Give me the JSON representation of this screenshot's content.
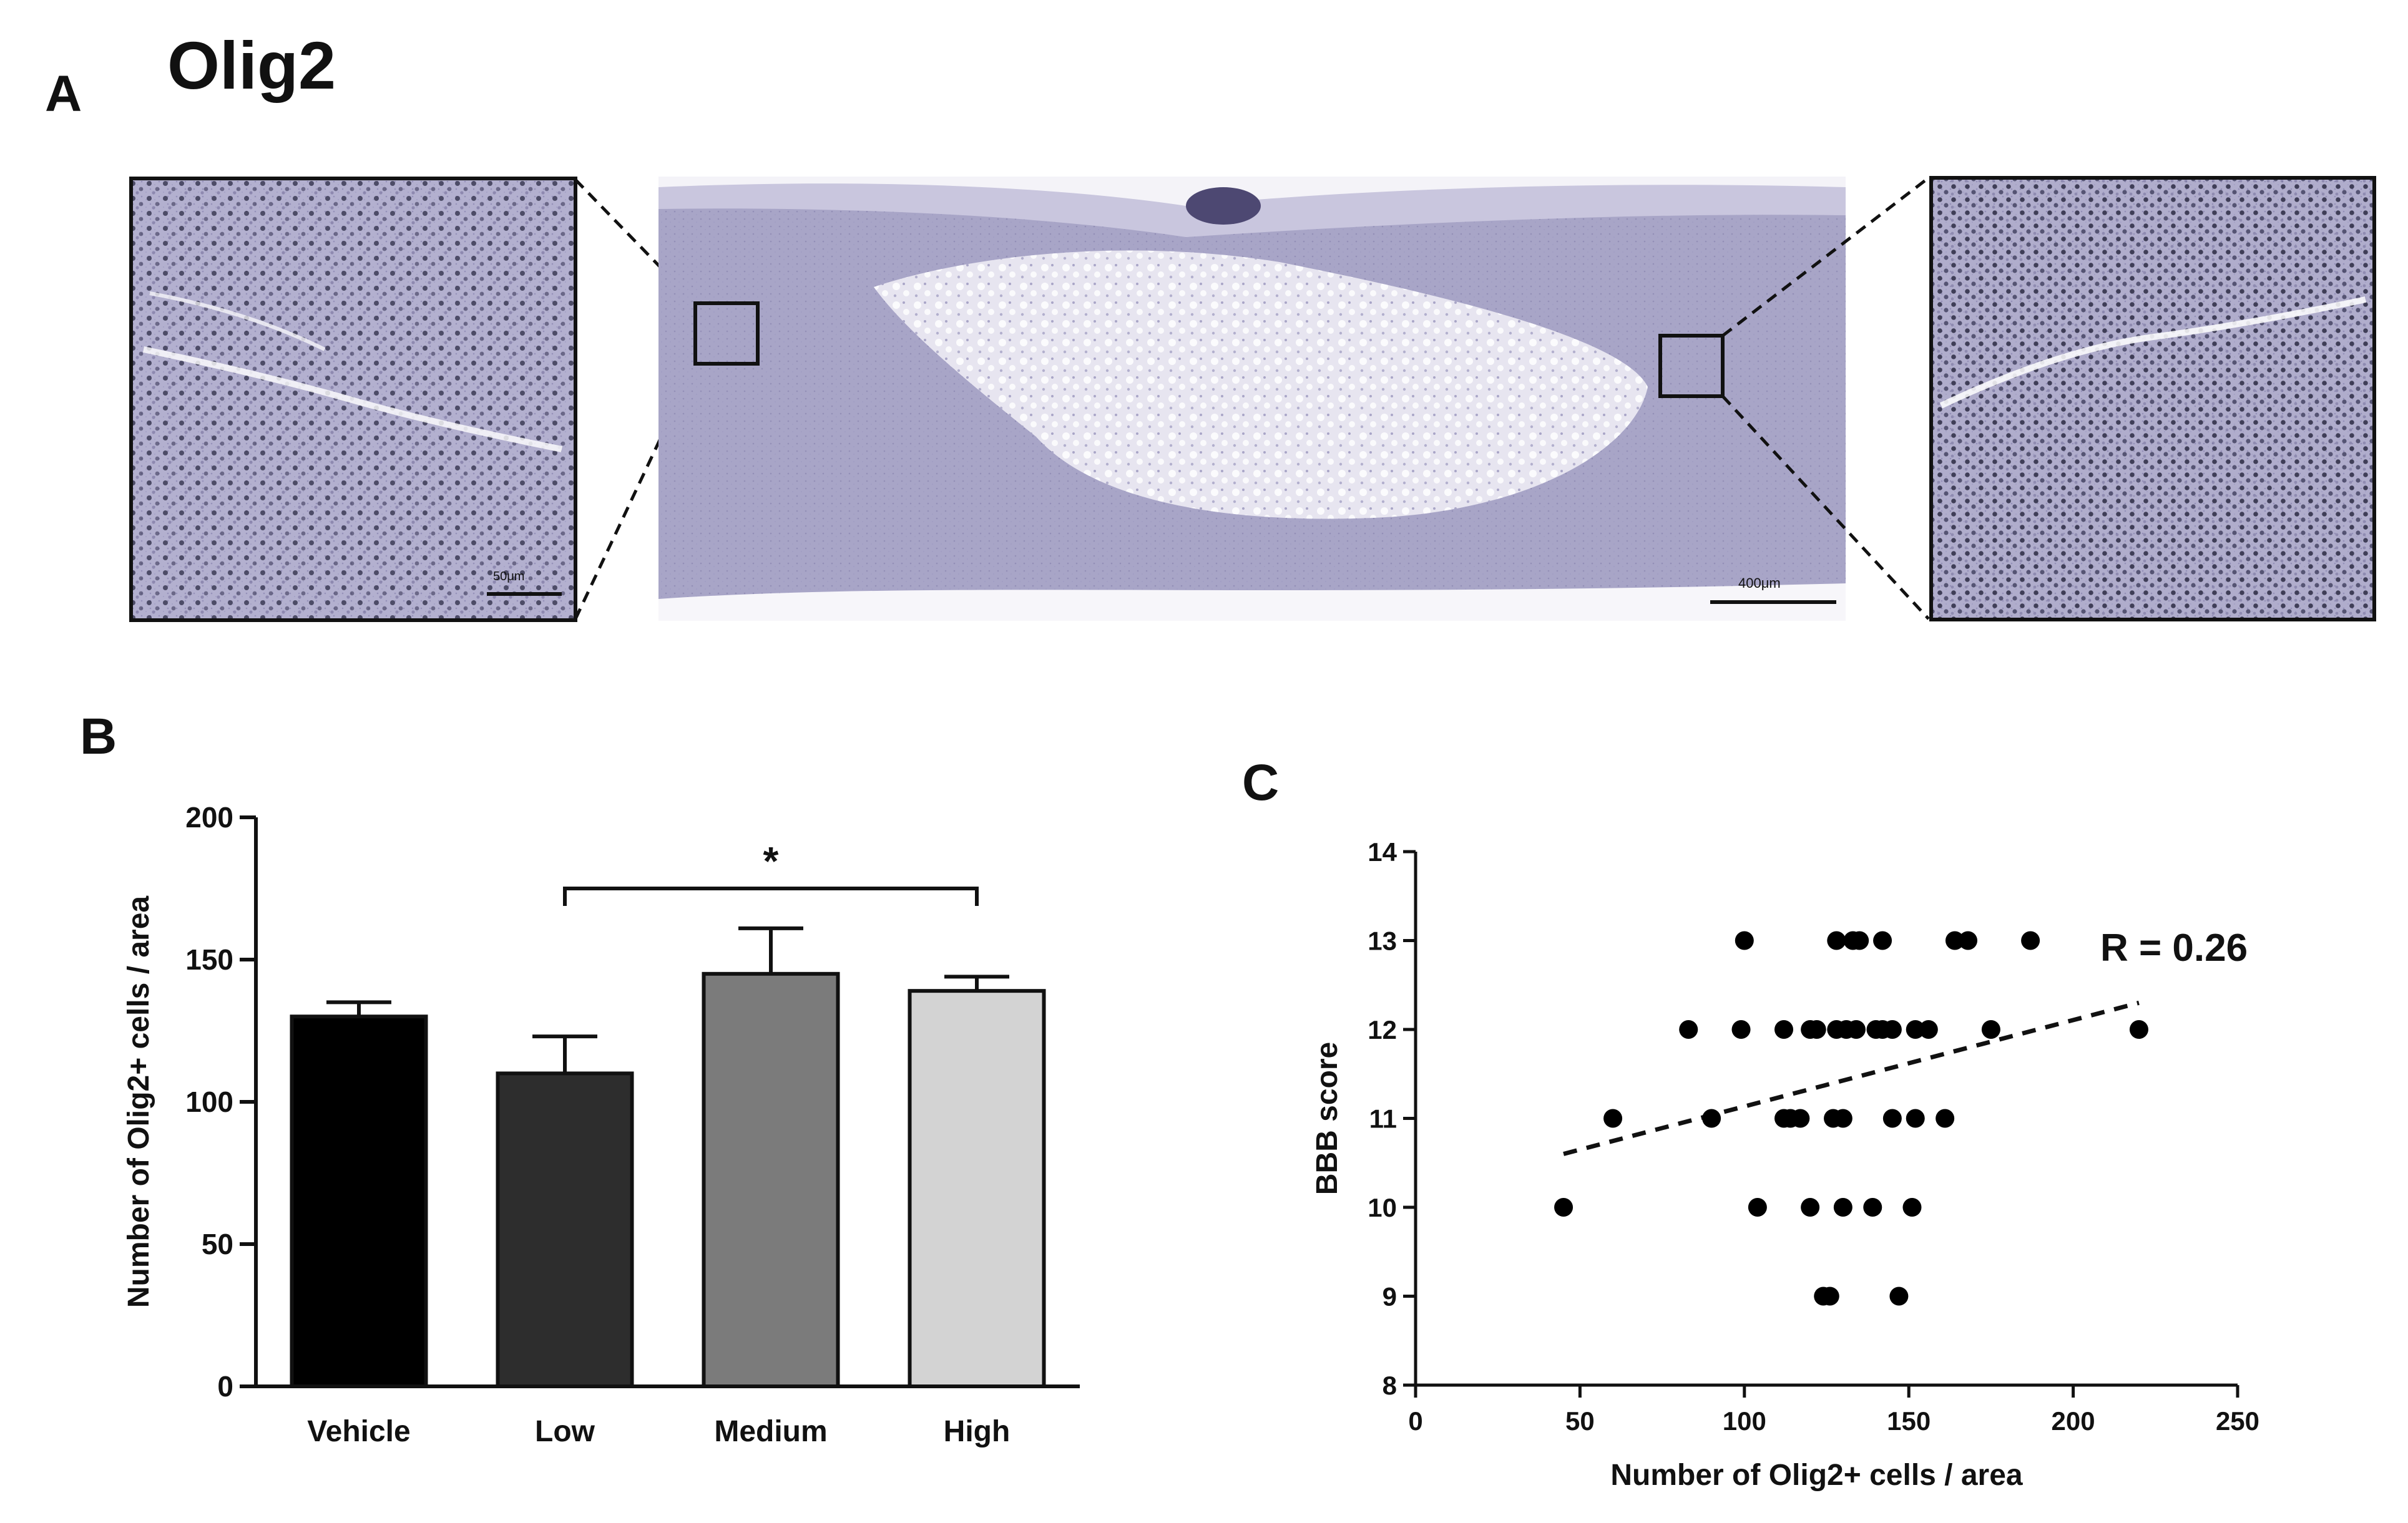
{
  "panel_a": {
    "letter": "A",
    "title": "Olig2",
    "scale_left": "50μm",
    "scale_center": "400μm",
    "colors": {
      "tissue": "#a8a5c7",
      "tissue_dark": "#8f8ab5",
      "nuclei": "#2b2a44",
      "lesion": "#e7e5f0"
    }
  },
  "panel_b": {
    "letter": "B",
    "significance": "*"
  },
  "panel_c": {
    "letter": "C",
    "r_label": "R = 0.26"
  },
  "chart_data": [
    {
      "type": "bar",
      "categories": [
        "Vehicle",
        "Low",
        "Medium",
        "High"
      ],
      "values": [
        130,
        110,
        145,
        139
      ],
      "errors": [
        5,
        13,
        16,
        5
      ],
      "colors": [
        "#000000",
        "#2d2d2d",
        "#7b7b7b",
        "#d3d3d3"
      ],
      "ylabel": "Number of Olig2+ cells / area",
      "ylim": [
        0,
        200
      ],
      "yticks": [
        0,
        50,
        100,
        150,
        200
      ],
      "significance": {
        "from": "Low",
        "to": "High",
        "label": "*"
      }
    },
    {
      "type": "scatter",
      "xlabel": "Number of Olig2+ cells / area",
      "ylabel": "BBB score",
      "xlim": [
        0,
        250
      ],
      "ylim": [
        8,
        14
      ],
      "xticks": [
        0,
        50,
        100,
        150,
        200,
        250
      ],
      "yticks": [
        8,
        9,
        10,
        11,
        12,
        13,
        14
      ],
      "points": [
        [
          100,
          13
        ],
        [
          128,
          13
        ],
        [
          133,
          13
        ],
        [
          135,
          13
        ],
        [
          142,
          13
        ],
        [
          164,
          13
        ],
        [
          168,
          13
        ],
        [
          187,
          13
        ],
        [
          83,
          12
        ],
        [
          99,
          12
        ],
        [
          112,
          12
        ],
        [
          120,
          12
        ],
        [
          122,
          12
        ],
        [
          128,
          12
        ],
        [
          131,
          12
        ],
        [
          134,
          12
        ],
        [
          140,
          12
        ],
        [
          142,
          12
        ],
        [
          145,
          12
        ],
        [
          152,
          12
        ],
        [
          156,
          12
        ],
        [
          175,
          12
        ],
        [
          220,
          12
        ],
        [
          60,
          11
        ],
        [
          90,
          11
        ],
        [
          112,
          11
        ],
        [
          114,
          11
        ],
        [
          117,
          11
        ],
        [
          127,
          11
        ],
        [
          130,
          11
        ],
        [
          145,
          11
        ],
        [
          152,
          11
        ],
        [
          161,
          11
        ],
        [
          45,
          10
        ],
        [
          104,
          10
        ],
        [
          120,
          10
        ],
        [
          130,
          10
        ],
        [
          139,
          10
        ],
        [
          151,
          10
        ],
        [
          124,
          9
        ],
        [
          126,
          9
        ],
        [
          147,
          9
        ]
      ],
      "trendline": {
        "x": [
          45,
          220
        ],
        "y": [
          10.6,
          12.3
        ]
      },
      "annotation": "R = 0.26"
    }
  ]
}
